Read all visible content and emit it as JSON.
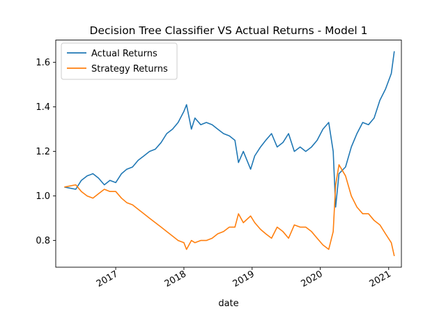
{
  "chart_data": {
    "type": "line",
    "title": "Decision Tree Classifier VS Actual Returns - Model 1",
    "xlabel": "date",
    "ylabel": "",
    "xlim": [
      "2016-02-15",
      "2021-03-10"
    ],
    "ylim": [
      0.68,
      1.7
    ],
    "yticks": [
      0.8,
      1.0,
      1.2,
      1.4,
      1.6
    ],
    "ytick_labels": [
      "0.8",
      "1.0",
      "1.2",
      "1.4",
      "1.6"
    ],
    "xticks": [
      "2017-01-01",
      "2018-01-01",
      "2019-01-01",
      "2020-01-01",
      "2021-01-01"
    ],
    "xtick_labels": [
      "2017",
      "2018",
      "2019",
      "2020",
      "2021"
    ],
    "grid": false,
    "legend_position": "upper-left",
    "series": [
      {
        "name": "Actual Returns",
        "color": "#1f77b4",
        "points": [
          [
            "2016-04-01",
            1.04
          ],
          [
            "2016-06-01",
            1.03
          ],
          [
            "2016-07-01",
            1.07
          ],
          [
            "2016-08-01",
            1.09
          ],
          [
            "2016-09-01",
            1.1
          ],
          [
            "2016-10-01",
            1.08
          ],
          [
            "2016-11-01",
            1.05
          ],
          [
            "2016-12-01",
            1.07
          ],
          [
            "2017-01-01",
            1.06
          ],
          [
            "2017-02-01",
            1.1
          ],
          [
            "2017-03-01",
            1.12
          ],
          [
            "2017-04-01",
            1.13
          ],
          [
            "2017-05-01",
            1.16
          ],
          [
            "2017-06-01",
            1.18
          ],
          [
            "2017-07-01",
            1.2
          ],
          [
            "2017-08-01",
            1.21
          ],
          [
            "2017-09-01",
            1.24
          ],
          [
            "2017-10-01",
            1.28
          ],
          [
            "2017-11-01",
            1.3
          ],
          [
            "2017-12-01",
            1.33
          ],
          [
            "2018-01-01",
            1.38
          ],
          [
            "2018-01-15",
            1.41
          ],
          [
            "2018-02-10",
            1.3
          ],
          [
            "2018-03-01",
            1.35
          ],
          [
            "2018-04-01",
            1.32
          ],
          [
            "2018-05-01",
            1.33
          ],
          [
            "2018-06-01",
            1.32
          ],
          [
            "2018-07-01",
            1.3
          ],
          [
            "2018-08-01",
            1.28
          ],
          [
            "2018-09-01",
            1.27
          ],
          [
            "2018-10-01",
            1.25
          ],
          [
            "2018-10-20",
            1.15
          ],
          [
            "2018-11-15",
            1.2
          ],
          [
            "2018-12-24",
            1.12
          ],
          [
            "2019-01-15",
            1.18
          ],
          [
            "2019-02-15",
            1.22
          ],
          [
            "2019-03-15",
            1.25
          ],
          [
            "2019-04-15",
            1.28
          ],
          [
            "2019-05-15",
            1.22
          ],
          [
            "2019-06-15",
            1.24
          ],
          [
            "2019-07-15",
            1.28
          ],
          [
            "2019-08-15",
            1.2
          ],
          [
            "2019-09-15",
            1.22
          ],
          [
            "2019-10-15",
            1.2
          ],
          [
            "2019-11-15",
            1.22
          ],
          [
            "2019-12-15",
            1.25
          ],
          [
            "2020-01-15",
            1.3
          ],
          [
            "2020-02-15",
            1.33
          ],
          [
            "2020-03-10",
            1.2
          ],
          [
            "2020-03-23",
            0.95
          ],
          [
            "2020-04-10",
            1.1
          ],
          [
            "2020-05-15",
            1.13
          ],
          [
            "2020-06-15",
            1.22
          ],
          [
            "2020-07-15",
            1.28
          ],
          [
            "2020-08-15",
            1.33
          ],
          [
            "2020-09-15",
            1.32
          ],
          [
            "2020-10-15",
            1.35
          ],
          [
            "2020-11-15",
            1.43
          ],
          [
            "2020-12-15",
            1.48
          ],
          [
            "2021-01-15",
            1.55
          ],
          [
            "2021-01-31",
            1.65
          ]
        ]
      },
      {
        "name": "Strategy Returns",
        "color": "#ff7f0e",
        "points": [
          [
            "2016-04-01",
            1.04
          ],
          [
            "2016-06-01",
            1.05
          ],
          [
            "2016-07-01",
            1.02
          ],
          [
            "2016-08-01",
            1.0
          ],
          [
            "2016-09-01",
            0.99
          ],
          [
            "2016-10-01",
            1.01
          ],
          [
            "2016-11-01",
            1.03
          ],
          [
            "2016-12-01",
            1.02
          ],
          [
            "2017-01-01",
            1.02
          ],
          [
            "2017-02-01",
            0.99
          ],
          [
            "2017-03-01",
            0.97
          ],
          [
            "2017-04-01",
            0.96
          ],
          [
            "2017-05-01",
            0.94
          ],
          [
            "2017-06-01",
            0.92
          ],
          [
            "2017-07-01",
            0.9
          ],
          [
            "2017-08-01",
            0.88
          ],
          [
            "2017-09-01",
            0.86
          ],
          [
            "2017-10-01",
            0.84
          ],
          [
            "2017-11-01",
            0.82
          ],
          [
            "2017-12-01",
            0.8
          ],
          [
            "2018-01-01",
            0.79
          ],
          [
            "2018-01-15",
            0.76
          ],
          [
            "2018-02-10",
            0.8
          ],
          [
            "2018-03-01",
            0.79
          ],
          [
            "2018-04-01",
            0.8
          ],
          [
            "2018-05-01",
            0.8
          ],
          [
            "2018-06-01",
            0.81
          ],
          [
            "2018-07-01",
            0.83
          ],
          [
            "2018-08-01",
            0.84
          ],
          [
            "2018-09-01",
            0.86
          ],
          [
            "2018-10-01",
            0.86
          ],
          [
            "2018-10-20",
            0.92
          ],
          [
            "2018-11-15",
            0.88
          ],
          [
            "2018-12-24",
            0.91
          ],
          [
            "2019-01-15",
            0.88
          ],
          [
            "2019-02-15",
            0.85
          ],
          [
            "2019-03-15",
            0.83
          ],
          [
            "2019-04-15",
            0.81
          ],
          [
            "2019-05-15",
            0.86
          ],
          [
            "2019-06-15",
            0.84
          ],
          [
            "2019-07-15",
            0.81
          ],
          [
            "2019-08-15",
            0.87
          ],
          [
            "2019-09-15",
            0.86
          ],
          [
            "2019-10-15",
            0.86
          ],
          [
            "2019-11-15",
            0.84
          ],
          [
            "2019-12-15",
            0.81
          ],
          [
            "2020-01-15",
            0.78
          ],
          [
            "2020-02-15",
            0.76
          ],
          [
            "2020-03-10",
            0.84
          ],
          [
            "2020-03-23",
            1.05
          ],
          [
            "2020-04-10",
            1.14
          ],
          [
            "2020-05-15",
            1.09
          ],
          [
            "2020-06-15",
            1.0
          ],
          [
            "2020-07-15",
            0.95
          ],
          [
            "2020-08-15",
            0.92
          ],
          [
            "2020-09-15",
            0.92
          ],
          [
            "2020-10-15",
            0.89
          ],
          [
            "2020-11-15",
            0.87
          ],
          [
            "2020-12-15",
            0.83
          ],
          [
            "2021-01-15",
            0.79
          ],
          [
            "2021-01-31",
            0.73
          ]
        ]
      }
    ]
  }
}
